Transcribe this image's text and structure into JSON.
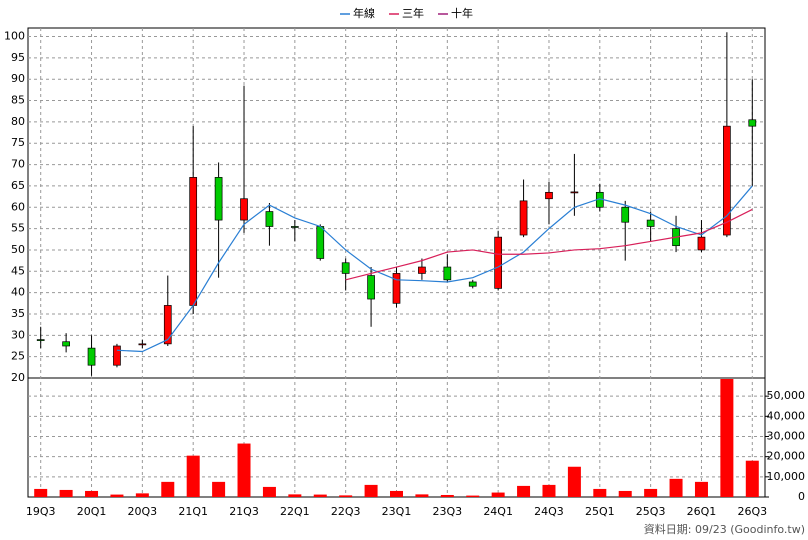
{
  "chart_data": {
    "type": "candlestick",
    "categories": [
      "19Q3",
      null,
      "20Q1",
      null,
      "20Q3",
      null,
      "21Q1",
      null,
      "21Q3",
      null,
      "22Q1",
      null,
      "22Q3",
      null,
      "23Q1",
      null,
      "23Q3",
      null,
      "24Q1",
      null,
      "24Q3",
      null,
      "25Q1",
      null,
      "25Q3",
      null,
      "26Q1",
      null,
      "26Q3"
    ],
    "ohlc": {
      "open": [
        29,
        28.5,
        27,
        23,
        27.8,
        28,
        37,
        67,
        57,
        59,
        55.5,
        55.5,
        47,
        44,
        37.5,
        44.5,
        46,
        42.5,
        41,
        53.5,
        62,
        63.5,
        63.5,
        60,
        57,
        55,
        50,
        53.5,
        80.5
      ],
      "high": [
        32,
        30.5,
        30,
        28,
        29,
        44,
        79,
        70.5,
        88.5,
        61,
        57,
        56,
        48,
        46,
        46,
        48,
        49,
        43,
        54.5,
        66.5,
        66,
        72.5,
        65.5,
        61.5,
        59,
        58,
        57,
        101,
        90
      ],
      "low": [
        27,
        26,
        20.5,
        22.5,
        27,
        27.5,
        35,
        43.5,
        54,
        51,
        52,
        47.5,
        40.5,
        32,
        36.5,
        43,
        42.5,
        41,
        40.5,
        53,
        56,
        58,
        59,
        47.5,
        52,
        49.5,
        49.5,
        53,
        65
      ],
      "close": [
        28.8,
        27.5,
        23,
        27.5,
        28,
        37,
        67,
        57,
        62,
        55.5,
        55.3,
        48,
        44.5,
        38.5,
        44.5,
        46,
        43,
        41.5,
        53,
        61.5,
        63.5,
        63.6,
        60,
        56.5,
        55.5,
        51,
        53,
        79,
        79
      ],
      "up_color": "#ff0000",
      "down_color": "#00cc00"
    },
    "series": [
      {
        "name": "年線",
        "color": "#2a7fd4",
        "values": [
          null,
          null,
          null,
          26.5,
          26.2,
          29,
          37,
          47,
          56,
          60.5,
          57.5,
          55.5,
          50,
          45.5,
          43,
          42.8,
          42.5,
          43.5,
          46,
          49.5,
          55,
          60,
          62,
          60.5,
          58.5,
          55.5,
          53.5,
          58,
          65
        ]
      },
      {
        "name": "三年",
        "color": "#d8205a",
        "values": [
          null,
          null,
          null,
          null,
          null,
          null,
          null,
          null,
          null,
          null,
          null,
          null,
          43,
          44.5,
          46,
          47.5,
          49.5,
          50,
          49,
          49,
          49.3,
          50,
          50.3,
          51,
          52,
          53,
          54,
          56.5,
          59.5
        ]
      },
      {
        "name": "十年",
        "color": "#a0207a",
        "values": [
          null,
          null,
          null,
          null,
          null,
          null,
          null,
          null,
          null,
          null,
          null,
          null,
          null,
          null,
          null,
          null,
          null,
          null,
          null,
          null,
          null,
          null,
          null,
          null,
          null,
          null,
          null,
          null,
          null
        ]
      }
    ],
    "volume": {
      "color": "#ff0000",
      "axis": "y2",
      "values": [
        4000,
        3500,
        3000,
        1200,
        1800,
        7500,
        20500,
        7500,
        26500,
        5000,
        1300,
        1200,
        800,
        6000,
        3000,
        1300,
        1000,
        700,
        2200,
        5500,
        6000,
        15000,
        4000,
        3000,
        4000,
        9000,
        7500,
        58500,
        18000
      ]
    },
    "ylim": [
      20,
      102
    ],
    "yticks": [
      20,
      25,
      30,
      35,
      40,
      45,
      50,
      55,
      60,
      65,
      70,
      75,
      80,
      85,
      90,
      95,
      100
    ],
    "y2lim": [
      0,
      59000
    ],
    "y2ticks": [
      0,
      {
        "value": 10000,
        "label": "10,000"
      },
      {
        "value": 20000,
        "label": "20,000"
      },
      {
        "value": 30000,
        "label": "30,000"
      },
      {
        "value": 40000,
        "label": "40,000"
      },
      {
        "value": 50000,
        "label": "50,000"
      }
    ],
    "grid": true,
    "legend": "top",
    "note": "資料日期: 09/23 (Goodinfo.tw)"
  }
}
